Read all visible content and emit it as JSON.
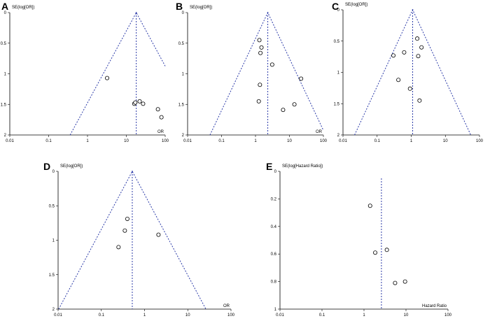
{
  "chart_data": [
    {
      "type": "scatter",
      "panel": "A",
      "title": "",
      "ylabel": "SE(log[OR])",
      "xlabel": "OR",
      "x_scale": "log",
      "xlim": [
        0.01,
        100
      ],
      "ylim": [
        0,
        2
      ],
      "y_inverted": true,
      "x_ticks": [
        "0.01",
        "0.1",
        "1",
        "10",
        "100"
      ],
      "y_ticks": [
        "0",
        "0.5",
        "1",
        "1.5",
        "2"
      ],
      "pooled_estimate": 18,
      "funnel": true,
      "points": [
        [
          3.2,
          1.07
        ],
        [
          16,
          1.49
        ],
        [
          17,
          1.47
        ],
        [
          22,
          1.45
        ],
        [
          27,
          1.49
        ],
        [
          65,
          1.58
        ],
        [
          80,
          1.71
        ]
      ]
    },
    {
      "type": "scatter",
      "panel": "B",
      "title": "",
      "ylabel": "SE(log[OR])",
      "xlabel": "OR",
      "x_scale": "log",
      "xlim": [
        0.01,
        100
      ],
      "ylim": [
        0,
        2
      ],
      "y_inverted": true,
      "x_ticks": [
        "0.01",
        "0.1",
        "1",
        "10",
        "100"
      ],
      "y_ticks": [
        "0",
        "0.5",
        "1",
        "1.5",
        "2"
      ],
      "pooled_estimate": 2.3,
      "funnel": true,
      "points": [
        [
          1.3,
          0.45
        ],
        [
          1.5,
          0.57
        ],
        [
          1.4,
          0.66
        ],
        [
          3.1,
          0.85
        ],
        [
          1.35,
          1.18
        ],
        [
          1.25,
          1.45
        ],
        [
          6.5,
          1.59
        ],
        [
          14,
          1.5
        ],
        [
          22,
          1.08
        ]
      ]
    },
    {
      "type": "scatter",
      "panel": "C",
      "title": "",
      "ylabel": "SE(log[OR])",
      "xlabel": "",
      "x_scale": "log",
      "xlim": [
        0.01,
        100
      ],
      "ylim": [
        0,
        2
      ],
      "y_inverted": true,
      "x_ticks": [
        "0.01",
        "0.1",
        "1",
        "10",
        "100"
      ],
      "y_ticks": [
        "0",
        "0.5",
        "1",
        "1.5",
        "2"
      ],
      "pooled_estimate": 1.1,
      "funnel": true,
      "points": [
        [
          0.3,
          0.73
        ],
        [
          0.62,
          0.68
        ],
        [
          1.5,
          0.46
        ],
        [
          2.0,
          0.6
        ],
        [
          1.6,
          0.74
        ],
        [
          0.42,
          1.12
        ],
        [
          0.92,
          1.26
        ],
        [
          1.75,
          1.45
        ]
      ]
    },
    {
      "type": "scatter",
      "panel": "D",
      "title": "",
      "ylabel": "SE(log[OR])",
      "xlabel": "OR",
      "x_scale": "log",
      "xlim": [
        0.01,
        100
      ],
      "ylim": [
        0,
        2
      ],
      "y_inverted": true,
      "x_ticks": [
        "0.01",
        "0.1",
        "1",
        "10",
        "100"
      ],
      "y_ticks": [
        "0",
        "0.5",
        "1",
        "1.5",
        "2"
      ],
      "pooled_estimate": 0.52,
      "funnel": true,
      "points": [
        [
          0.4,
          0.69
        ],
        [
          0.35,
          0.86
        ],
        [
          0.25,
          1.1
        ],
        [
          2.1,
          0.92
        ]
      ]
    },
    {
      "type": "scatter",
      "panel": "E",
      "title": "",
      "ylabel": "SE(log[Hazard Ratio])",
      "xlabel": "Hazard Ratio",
      "x_scale": "log",
      "xlim": [
        0.01,
        100
      ],
      "ylim": [
        0,
        1
      ],
      "y_inverted": true,
      "x_ticks": [
        "0.01",
        "0.1",
        "1",
        "10",
        "100"
      ],
      "y_ticks": [
        "0",
        "0.2",
        "0.4",
        "0.6",
        "0.8",
        "1"
      ],
      "pooled_estimate": 2.6,
      "funnel": false,
      "points": [
        [
          1.4,
          0.25
        ],
        [
          1.85,
          0.59
        ],
        [
          3.5,
          0.57
        ],
        [
          5.5,
          0.81
        ],
        [
          9.5,
          0.8
        ]
      ]
    }
  ]
}
